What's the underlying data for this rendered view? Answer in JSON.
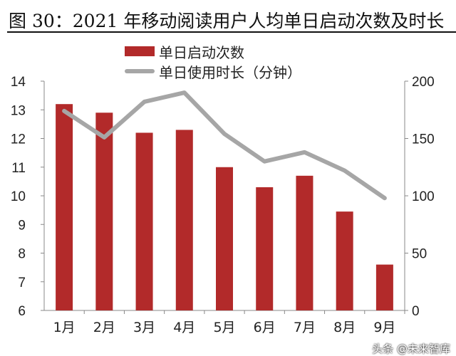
{
  "title": "图 30：2021 年移动阅读用户人均单日启动次数及时长",
  "watermark": "头条 @未来智库",
  "colors": {
    "bar": "#b22a2a",
    "line": "#a6a6a6"
  },
  "chart_data": {
    "type": "bar+line",
    "title": "2021 年移动阅读用户人均单日启动次数及时长",
    "categories": [
      "1月",
      "2月",
      "3月",
      "4月",
      "5月",
      "6月",
      "7月",
      "8月",
      "9月"
    ],
    "series": [
      {
        "name": "单日启动次数",
        "type": "bar",
        "axis": "left",
        "values": [
          13.2,
          12.9,
          12.2,
          12.3,
          11.0,
          10.3,
          10.7,
          9.45,
          7.6
        ]
      },
      {
        "name": "单日使用时长（分钟）",
        "type": "line",
        "axis": "right",
        "values": [
          174,
          151,
          182,
          190,
          154,
          130,
          138,
          122,
          98
        ]
      }
    ],
    "ylim_left": [
      6,
      14
    ],
    "yticks_left": [
      "6",
      "7",
      "8",
      "9",
      "10",
      "11",
      "12",
      "13",
      "14"
    ],
    "ylim_right": [
      0,
      200
    ],
    "yticks_right": [
      "0",
      "50",
      "100",
      "150",
      "200"
    ],
    "legend": "top-center",
    "grid": false
  }
}
